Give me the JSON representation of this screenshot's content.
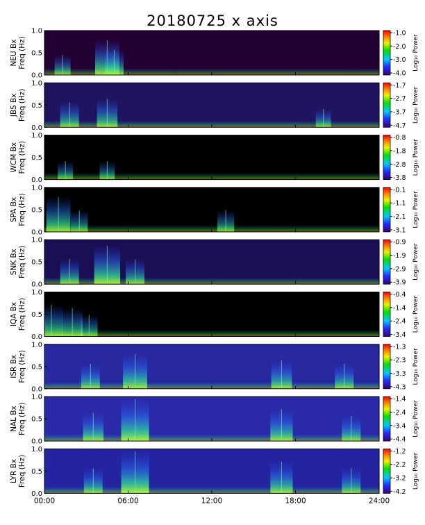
{
  "chart_data": {
    "type": "heatmap",
    "title": "20180725 x axis",
    "side_note": "",
    "time_ticks": [
      "00:00",
      "06:00",
      "12:00",
      "18:00",
      "24:00"
    ],
    "xlim_hours": [
      0,
      24
    ],
    "ylabel_freq": "Freq (Hz)",
    "ylim": [
      0,
      1.0
    ],
    "y_ticks": [
      "0.0",
      "0.5",
      "1.0"
    ],
    "colorbar_label": "Log₁₀ Power",
    "panels": [
      {
        "station": "NEU",
        "label": "NEU Bx",
        "cbar_ticks": [
          "-1.0",
          "-2.0",
          "-3.0",
          "-4.0"
        ],
        "background": "#220033",
        "activity": [
          [
            1.3,
            0.35
          ],
          [
            4.5,
            0.8
          ],
          [
            5.0,
            0.5
          ]
        ]
      },
      {
        "station": "JBS",
        "label": "JBS Bx",
        "cbar_ticks": [
          "-1.7",
          "-2.7",
          "-3.7",
          "-4.7"
        ],
        "background": "#1e1460",
        "activity": [
          [
            1.8,
            0.5
          ],
          [
            4.5,
            0.6
          ],
          [
            20.0,
            0.3
          ]
        ]
      },
      {
        "station": "WCM",
        "label": "WCM Bx",
        "cbar_ticks": [
          "-0.8",
          "-1.8",
          "-2.8",
          "-3.8"
        ],
        "background": "#000000",
        "activity": [
          [
            1.5,
            0.3
          ],
          [
            4.5,
            0.3
          ]
        ]
      },
      {
        "station": "SPA",
        "label": "SPA Bx",
        "cbar_ticks": [
          "-0.1",
          "-1.1",
          "-2.1",
          "-3.1"
        ],
        "background": "#000000",
        "activity": [
          [
            1.0,
            0.8
          ],
          [
            2.5,
            0.4
          ],
          [
            13.0,
            0.4
          ]
        ]
      },
      {
        "station": "SNK",
        "label": "SNK Bx",
        "cbar_ticks": [
          "-0.9",
          "-1.9",
          "-2.9",
          "-3.9"
        ],
        "background": "#1a0e55",
        "activity": [
          [
            1.8,
            0.5
          ],
          [
            4.5,
            0.9
          ],
          [
            6.5,
            0.5
          ]
        ]
      },
      {
        "station": "IQA",
        "label": "IQA Bx",
        "cbar_ticks": [
          "-0.4",
          "-1.4",
          "-2.4",
          "-3.4"
        ],
        "background": "#000000",
        "activity": [
          [
            0.5,
            0.7
          ],
          [
            2.0,
            0.6
          ],
          [
            3.2,
            0.4
          ]
        ]
      },
      {
        "station": "ISR",
        "label": "ISR Bx",
        "cbar_ticks": [
          "-1.3",
          "-2.3",
          "-3.3",
          "-4.3"
        ],
        "background": "#2828a0",
        "activity": [
          [
            3.3,
            0.5
          ],
          [
            6.5,
            0.8
          ],
          [
            17.0,
            0.6
          ],
          [
            21.5,
            0.5
          ]
        ]
      },
      {
        "station": "NAL",
        "label": "NAL Bx",
        "cbar_ticks": [
          "-1.4",
          "-2.4",
          "-3.4",
          "-4.4"
        ],
        "background": "#2a2aa8",
        "activity": [
          [
            3.5,
            0.6
          ],
          [
            6.5,
            1.0
          ],
          [
            17.0,
            0.7
          ],
          [
            22.0,
            0.5
          ]
        ]
      },
      {
        "station": "LYR",
        "label": "LYR Bx",
        "cbar_ticks": [
          "-1.2",
          "-2.2",
          "-3.2",
          "-4.2"
        ],
        "background": "#2424a0",
        "activity": [
          [
            3.5,
            0.5
          ],
          [
            6.5,
            1.0
          ],
          [
            17.0,
            0.7
          ],
          [
            22.0,
            0.5
          ]
        ]
      }
    ]
  }
}
